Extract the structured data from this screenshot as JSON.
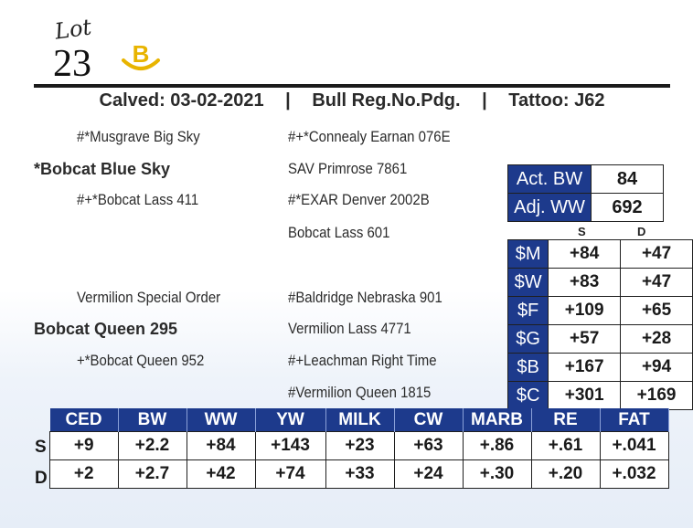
{
  "lot": {
    "word": "Lot",
    "number": "23",
    "badge": "B"
  },
  "header": {
    "calved": "Calved: 03-02-2021",
    "reg": "Bull Reg.No.Pdg.",
    "tattoo": "Tattoo: J62",
    "sep": "|"
  },
  "pedigree": {
    "sire": "*Bobcat Blue Sky",
    "sire_sire": "#*Musgrave Big Sky",
    "sire_dam": "#+*Bobcat Lass 411",
    "ss_sire": "#+*Connealy Earnan 076E",
    "ss_dam": "SAV Primrose 7861",
    "sd_sire": "#*EXAR Denver 2002B",
    "sd_dam": "Bobcat Lass 601",
    "dam": "Bobcat Queen 295",
    "dam_sire": "Vermilion Special Order",
    "dam_dam": "+*Bobcat Queen 952",
    "ds_sire": "#Baldridge Nebraska 901",
    "ds_dam": "Vermilion Lass 4771",
    "dd_sire": "#+Leachman Right Time",
    "dd_dam": "#Vermilion Queen 1815"
  },
  "weights": [
    {
      "label": "Act. BW",
      "value": "84"
    },
    {
      "label": "Adj. WW",
      "value": "692"
    }
  ],
  "index_cols": {
    "s": "S",
    "d": "D"
  },
  "indexes": [
    {
      "label": "$M",
      "s": "+84",
      "d": "+47"
    },
    {
      "label": "$W",
      "s": "+83",
      "d": "+47"
    },
    {
      "label": "$F",
      "s": "+109",
      "d": "+65"
    },
    {
      "label": "$G",
      "s": "+57",
      "d": "+28"
    },
    {
      "label": "$B",
      "s": "+167",
      "d": "+94"
    },
    {
      "label": "$C",
      "s": "+301",
      "d": "+169"
    }
  ],
  "epd": {
    "headers": [
      "CED",
      "BW",
      "WW",
      "YW",
      "MILK",
      "CW",
      "MARB",
      "RE",
      "FAT"
    ],
    "rows": [
      {
        "label": "S",
        "values": [
          "+9",
          "+2.2",
          "+84",
          "+143",
          "+23",
          "+63",
          "+.86",
          "+.61",
          "+.041"
        ]
      },
      {
        "label": "D",
        "values": [
          "+2",
          "+2.7",
          "+42",
          "+74",
          "+33",
          "+24",
          "+.30",
          "+.20",
          "+.032"
        ]
      }
    ]
  },
  "colors": {
    "accent": "#1d3a8c",
    "badge": "#e8b400"
  }
}
